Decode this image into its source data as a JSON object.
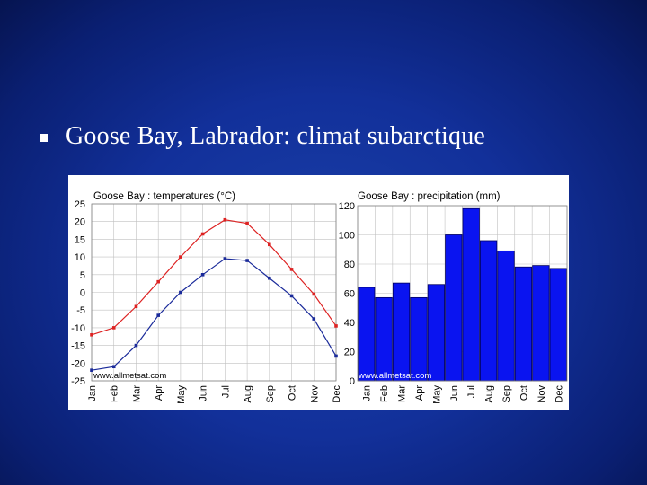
{
  "slide": {
    "bullet_icon": "square-bullet-icon",
    "title": "Goose Bay, Labrador: climat subarctique"
  },
  "colors": {
    "background": "#12309a",
    "max_temp_line": "#dd2222",
    "min_temp_line": "#1a2a9a",
    "precip_bar": "#0a14f0",
    "precip_bar_border": "#000060",
    "grid": "#c0c0c0"
  },
  "chart_data": [
    {
      "type": "line",
      "title": "Goose Bay : temperatures (°C)",
      "source_label": "www.allmetsat.com",
      "categories": [
        "Jan",
        "Feb",
        "Mar",
        "Apr",
        "May",
        "Jun",
        "Jul",
        "Aug",
        "Sep",
        "Oct",
        "Nov",
        "Dec"
      ],
      "series": [
        {
          "name": "",
          "values": [
            -12,
            -10,
            -4,
            3,
            10,
            16.5,
            20.5,
            19.5,
            13.5,
            6.5,
            -0.5,
            -9.5
          ]
        },
        {
          "name": "",
          "values": [
            -22,
            -21,
            -15,
            -6.5,
            0,
            5,
            9.5,
            9,
            4,
            -1,
            -7.5,
            -18
          ]
        }
      ],
      "ylim": [
        -25,
        25
      ],
      "yticks": [
        25,
        20,
        15,
        10,
        5,
        0,
        -5,
        -10,
        -15,
        -20,
        -25
      ],
      "grid": true
    },
    {
      "type": "bar",
      "title": "Goose Bay : precipitation (mm)",
      "source_label": "www.allmetsat.com",
      "categories": [
        "Jan",
        "Feb",
        "Mar",
        "Apr",
        "May",
        "Jun",
        "Jul",
        "Aug",
        "Sep",
        "Oct",
        "Nov",
        "Dec"
      ],
      "values": [
        64,
        57,
        67,
        57,
        66,
        100,
        118,
        96,
        89,
        78,
        79,
        77
      ],
      "ylim": [
        0,
        120
      ],
      "yticks": [
        120,
        100,
        80,
        60,
        40,
        20,
        0
      ],
      "grid": true
    }
  ]
}
